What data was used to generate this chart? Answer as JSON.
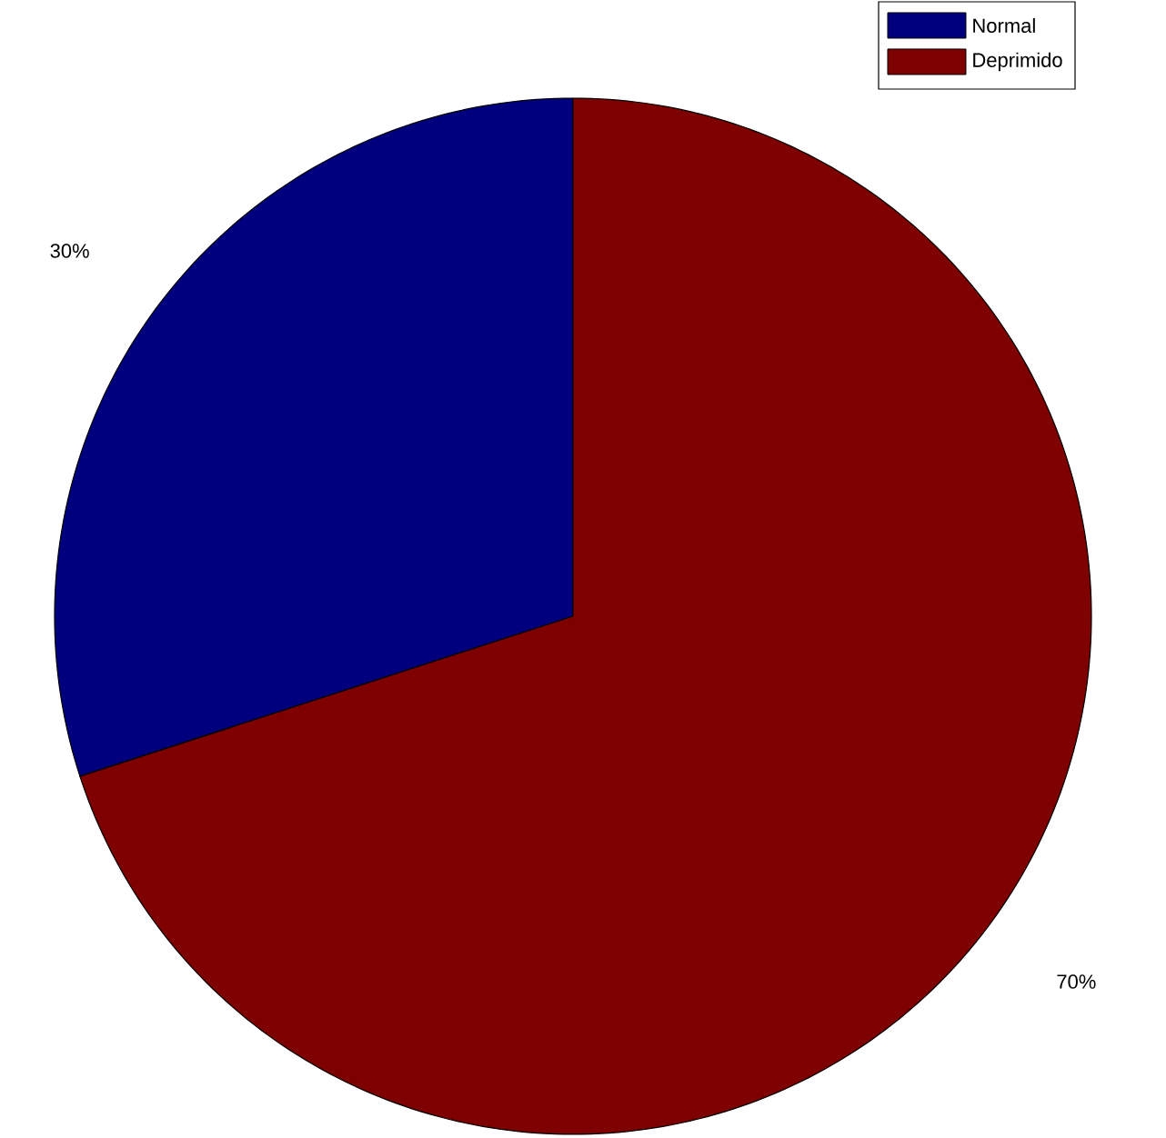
{
  "chart_data": {
    "type": "pie",
    "categories": [
      "Normal",
      "Deprimido"
    ],
    "values": [
      30,
      70
    ],
    "colors": [
      "#00007f",
      "#7f0000"
    ],
    "value_labels": [
      "30%",
      "70%"
    ],
    "legend": "top right"
  }
}
